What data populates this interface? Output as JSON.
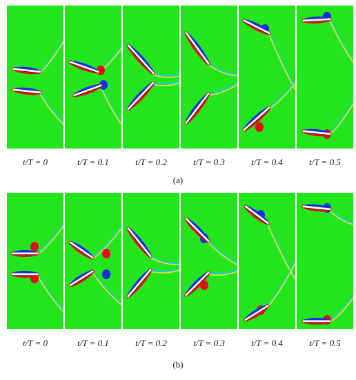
{
  "figure": {
    "time_labels": [
      "t/T = 0",
      "t/T = 0.1",
      "t/T = 0.2",
      "t/T = 0.3",
      "t/T = 0.4",
      "t/T = 0.5"
    ],
    "subfigures": [
      {
        "label": "(a)",
        "letter": "a"
      },
      {
        "label": "(b)",
        "letter": "b"
      }
    ],
    "colors": {
      "background": "#22e61b",
      "positive_vorticity": "#e01010",
      "negative_vorticity": "#1530e0",
      "foil": "#ffffff",
      "wake_yellow": "#e6e61a",
      "wake_cyan": "#23c8d8"
    }
  }
}
